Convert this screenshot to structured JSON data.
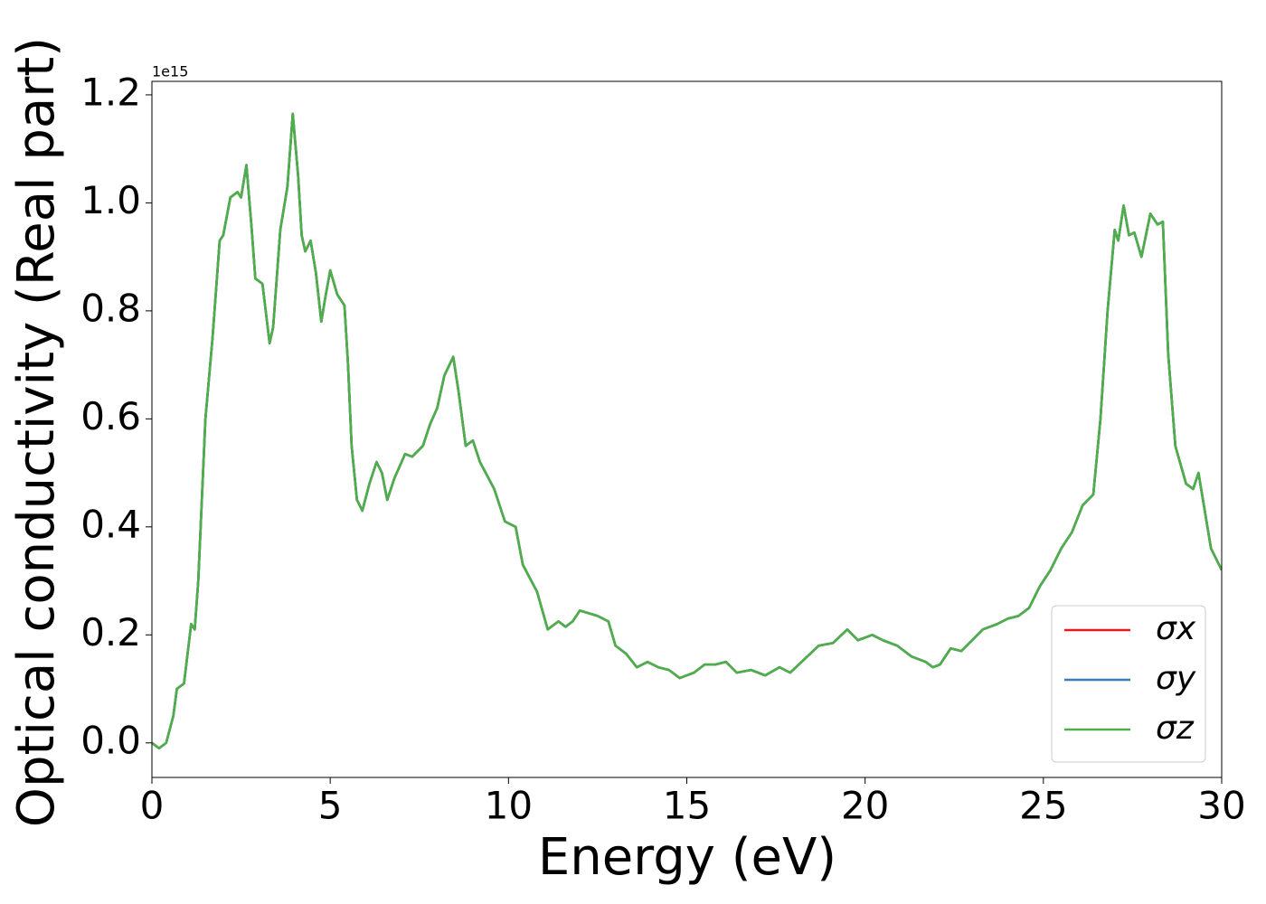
{
  "chart_data": {
    "type": "line",
    "xlabel": "Energy (eV)",
    "ylabel": "Optical conductivity (Real part)",
    "offset_label": "1e15",
    "x": [
      0,
      0.2,
      0.4,
      0.6,
      0.7,
      0.9,
      1.1,
      1.2,
      1.3,
      1.5,
      1.7,
      1.9,
      2.0,
      2.2,
      2.4,
      2.5,
      2.65,
      2.8,
      2.9,
      3.1,
      3.3,
      3.4,
      3.6,
      3.8,
      3.95,
      4.1,
      4.2,
      4.3,
      4.45,
      4.6,
      4.75,
      4.85,
      5.0,
      5.2,
      5.4,
      5.5,
      5.6,
      5.75,
      5.9,
      6.1,
      6.3,
      6.45,
      6.6,
      6.8,
      7.1,
      7.3,
      7.6,
      7.8,
      8.0,
      8.2,
      8.45,
      8.6,
      8.8,
      9.0,
      9.2,
      9.6,
      9.9,
      10.2,
      10.4,
      10.8,
      11.1,
      11.4,
      11.6,
      11.8,
      12.0,
      12.5,
      12.8,
      13.0,
      13.3,
      13.6,
      13.9,
      14.2,
      14.5,
      14.8,
      15.2,
      15.5,
      15.8,
      16.1,
      16.4,
      16.8,
      17.2,
      17.6,
      17.9,
      18.3,
      18.7,
      19.1,
      19.5,
      19.8,
      20.2,
      20.5,
      20.9,
      21.3,
      21.7,
      21.9,
      22.1,
      22.4,
      22.7,
      23.0,
      23.3,
      23.7,
      24.0,
      24.3,
      24.6,
      24.9,
      25.2,
      25.5,
      25.8,
      26.1,
      26.4,
      26.6,
      26.8,
      27.0,
      27.1,
      27.25,
      27.4,
      27.55,
      27.75,
      28.0,
      28.2,
      28.35,
      28.5,
      28.7,
      29.0,
      29.2,
      29.35,
      29.5,
      29.7,
      30.0
    ],
    "series": [
      {
        "name": "σx",
        "color": "#e41a1c",
        "values": [
          0,
          -0.01,
          0,
          0.05,
          0.1,
          0.11,
          0.22,
          0.21,
          0.3,
          0.6,
          0.75,
          0.93,
          0.94,
          1.01,
          1.02,
          1.01,
          1.07,
          0.95,
          0.86,
          0.85,
          0.74,
          0.77,
          0.95,
          1.03,
          1.165,
          1.05,
          0.94,
          0.91,
          0.93,
          0.87,
          0.78,
          0.82,
          0.875,
          0.83,
          0.81,
          0.7,
          0.55,
          0.45,
          0.43,
          0.48,
          0.52,
          0.5,
          0.45,
          0.49,
          0.535,
          0.53,
          0.55,
          0.59,
          0.62,
          0.68,
          0.715,
          0.65,
          0.55,
          0.56,
          0.52,
          0.47,
          0.41,
          0.4,
          0.33,
          0.28,
          0.21,
          0.225,
          0.215,
          0.225,
          0.245,
          0.235,
          0.225,
          0.18,
          0.165,
          0.14,
          0.15,
          0.14,
          0.135,
          0.12,
          0.13,
          0.145,
          0.145,
          0.15,
          0.13,
          0.135,
          0.125,
          0.14,
          0.13,
          0.155,
          0.18,
          0.185,
          0.21,
          0.19,
          0.2,
          0.19,
          0.18,
          0.16,
          0.15,
          0.14,
          0.145,
          0.175,
          0.17,
          0.19,
          0.21,
          0.22,
          0.23,
          0.235,
          0.25,
          0.29,
          0.32,
          0.36,
          0.39,
          0.44,
          0.46,
          0.6,
          0.8,
          0.95,
          0.93,
          0.995,
          0.94,
          0.945,
          0.9,
          0.98,
          0.96,
          0.965,
          0.72,
          0.55,
          0.48,
          0.47,
          0.5,
          0.44,
          0.36,
          0.32
        ]
      },
      {
        "name": "σy",
        "color": "#377eb8",
        "values": [
          0,
          -0.01,
          0,
          0.05,
          0.1,
          0.11,
          0.22,
          0.21,
          0.3,
          0.6,
          0.75,
          0.93,
          0.94,
          1.01,
          1.02,
          1.01,
          1.07,
          0.95,
          0.86,
          0.85,
          0.74,
          0.77,
          0.95,
          1.03,
          1.165,
          1.05,
          0.94,
          0.91,
          0.93,
          0.87,
          0.78,
          0.82,
          0.875,
          0.83,
          0.81,
          0.7,
          0.55,
          0.45,
          0.43,
          0.48,
          0.52,
          0.5,
          0.45,
          0.49,
          0.535,
          0.53,
          0.55,
          0.59,
          0.62,
          0.68,
          0.715,
          0.65,
          0.55,
          0.56,
          0.52,
          0.47,
          0.41,
          0.4,
          0.33,
          0.28,
          0.21,
          0.225,
          0.215,
          0.225,
          0.245,
          0.235,
          0.225,
          0.18,
          0.165,
          0.14,
          0.15,
          0.14,
          0.135,
          0.12,
          0.13,
          0.145,
          0.145,
          0.15,
          0.13,
          0.135,
          0.125,
          0.14,
          0.13,
          0.155,
          0.18,
          0.185,
          0.21,
          0.19,
          0.2,
          0.19,
          0.18,
          0.16,
          0.15,
          0.14,
          0.145,
          0.175,
          0.17,
          0.19,
          0.21,
          0.22,
          0.23,
          0.235,
          0.25,
          0.29,
          0.32,
          0.36,
          0.39,
          0.44,
          0.46,
          0.6,
          0.8,
          0.95,
          0.93,
          0.995,
          0.94,
          0.945,
          0.9,
          0.98,
          0.96,
          0.965,
          0.72,
          0.55,
          0.48,
          0.47,
          0.5,
          0.44,
          0.36,
          0.32
        ]
      },
      {
        "name": "σz",
        "color": "#4daf4a",
        "values": [
          0,
          -0.01,
          0,
          0.05,
          0.1,
          0.11,
          0.22,
          0.21,
          0.3,
          0.6,
          0.75,
          0.93,
          0.94,
          1.01,
          1.02,
          1.01,
          1.07,
          0.95,
          0.86,
          0.85,
          0.74,
          0.77,
          0.95,
          1.03,
          1.165,
          1.05,
          0.94,
          0.91,
          0.93,
          0.87,
          0.78,
          0.82,
          0.875,
          0.83,
          0.81,
          0.7,
          0.55,
          0.45,
          0.43,
          0.48,
          0.52,
          0.5,
          0.45,
          0.49,
          0.535,
          0.53,
          0.55,
          0.59,
          0.62,
          0.68,
          0.715,
          0.65,
          0.55,
          0.56,
          0.52,
          0.47,
          0.41,
          0.4,
          0.33,
          0.28,
          0.21,
          0.225,
          0.215,
          0.225,
          0.245,
          0.235,
          0.225,
          0.18,
          0.165,
          0.14,
          0.15,
          0.14,
          0.135,
          0.12,
          0.13,
          0.145,
          0.145,
          0.15,
          0.13,
          0.135,
          0.125,
          0.14,
          0.13,
          0.155,
          0.18,
          0.185,
          0.21,
          0.19,
          0.2,
          0.19,
          0.18,
          0.16,
          0.15,
          0.14,
          0.145,
          0.175,
          0.17,
          0.19,
          0.21,
          0.22,
          0.23,
          0.235,
          0.25,
          0.29,
          0.32,
          0.36,
          0.39,
          0.44,
          0.46,
          0.6,
          0.8,
          0.95,
          0.93,
          0.995,
          0.94,
          0.945,
          0.9,
          0.98,
          0.96,
          0.965,
          0.72,
          0.55,
          0.48,
          0.47,
          0.5,
          0.44,
          0.36,
          0.32
        ]
      }
    ],
    "xlim": [
      0,
      30
    ],
    "xticks": [
      0,
      5,
      10,
      15,
      20,
      25,
      30
    ],
    "ylim": [
      -0.064,
      1.225
    ],
    "yticks": [
      {
        "value": 0,
        "label": "0.0"
      },
      0.2,
      0.4,
      0.6,
      0.8,
      {
        "value": 1,
        "label": "1.0"
      },
      1.2
    ],
    "grid": false,
    "legend": "lower right"
  }
}
